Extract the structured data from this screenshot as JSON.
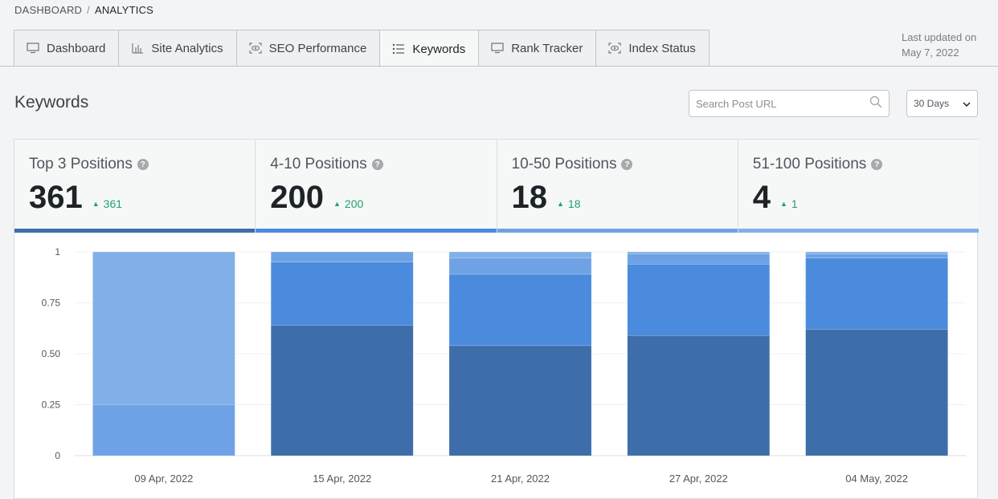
{
  "breadcrumb": {
    "root": "DASHBOARD",
    "separator": "/",
    "current": "ANALYTICS"
  },
  "tabs": [
    {
      "label": "Dashboard",
      "icon": "monitor-icon",
      "active": false
    },
    {
      "label": "Site Analytics",
      "icon": "bar-chart-icon",
      "active": false
    },
    {
      "label": "SEO Performance",
      "icon": "eye-frame-icon",
      "active": false
    },
    {
      "label": "Keywords",
      "icon": "list-icon",
      "active": true
    },
    {
      "label": "Rank Tracker",
      "icon": "monitor-icon",
      "active": false
    },
    {
      "label": "Index Status",
      "icon": "eye-frame-icon",
      "active": false
    }
  ],
  "last_updated": {
    "label": "Last updated on",
    "date": "May 7, 2022"
  },
  "page_title": "Keywords",
  "search": {
    "placeholder": "Search Post URL"
  },
  "range_select": {
    "value": "30 Days"
  },
  "stats": [
    {
      "label": "Top 3 Positions",
      "value": "361",
      "delta": "361"
    },
    {
      "label": "4-10 Positions",
      "value": "200",
      "delta": "200"
    },
    {
      "label": "10-50 Positions",
      "value": "18",
      "delta": "18"
    },
    {
      "label": "51-100 Positions",
      "value": "4",
      "delta": "1"
    }
  ],
  "colors": {
    "top3": "#3d6eaa",
    "pos4_10": "#4a8bdd",
    "pos10_50": "#6fa2e4",
    "pos51_100": "#81b0e8",
    "positive": "#20a26a"
  },
  "chart_data": {
    "type": "bar",
    "stacked": true,
    "categories": [
      "09 Apr, 2022",
      "15 Apr, 2022",
      "21 Apr, 2022",
      "27 Apr, 2022",
      "04 May, 2022"
    ],
    "series": [
      {
        "name": "Top 3 Positions",
        "color": "#3d6eaa",
        "values": [
          0,
          0.64,
          0.54,
          0.59,
          0.62
        ]
      },
      {
        "name": "4-10 Positions",
        "color": "#4a8bdd",
        "values": [
          0,
          0.31,
          0.35,
          0.35,
          0.35
        ]
      },
      {
        "name": "10-50 Positions",
        "color": "#6fa2e4",
        "values": [
          0.25,
          0.05,
          0.08,
          0.05,
          0.02
        ]
      },
      {
        "name": "51-100 Positions",
        "color": "#81b0e8",
        "values": [
          0.75,
          0,
          0.03,
          0.01,
          0.01
        ]
      }
    ],
    "ylim": [
      0,
      1
    ],
    "yticks": [
      "0",
      "0.25",
      "0.50",
      "0.75",
      "1"
    ],
    "ytick_values": [
      0,
      0.25,
      0.5,
      0.75,
      1
    ],
    "grid": true
  }
}
